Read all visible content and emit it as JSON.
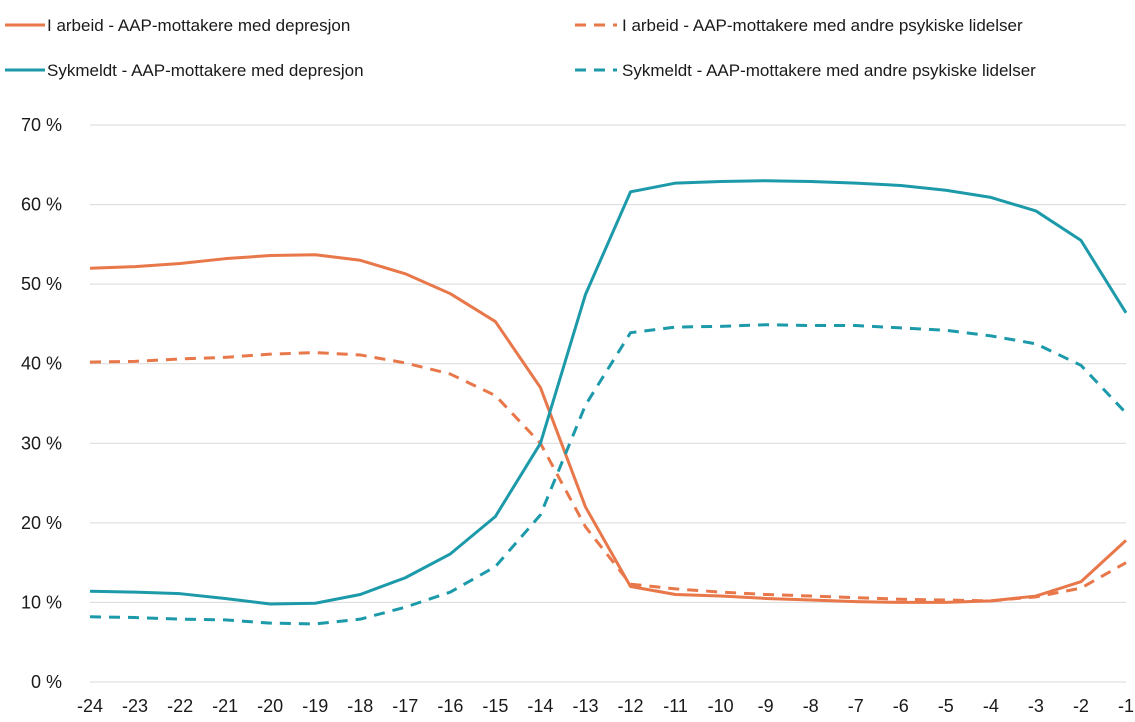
{
  "chart_data": {
    "type": "line",
    "x": [
      -24,
      -23,
      -22,
      -21,
      -20,
      -19,
      -18,
      -17,
      -16,
      -15,
      -14,
      -13,
      -12,
      -11,
      -10,
      -9,
      -8,
      -7,
      -6,
      -5,
      -4,
      -3,
      -2,
      -1
    ],
    "x_tick_labels": [
      "-24",
      "-23",
      "-22",
      "-21",
      "-20",
      "-19",
      "-18",
      "-17",
      "-16",
      "-15",
      "-14",
      "-13",
      "-12",
      "-11",
      "-10",
      "-9",
      "-8",
      "-7",
      "-6",
      "-5",
      "-4",
      "-3",
      "-2",
      "-1"
    ],
    "ylim": [
      0,
      70
    ],
    "y_ticks": [
      0,
      10,
      20,
      30,
      40,
      50,
      60,
      70
    ],
    "y_tick_labels": [
      "0 %",
      "10 %",
      "20 %",
      "30 %",
      "40 %",
      "50 %",
      "60 %",
      "70 %"
    ],
    "grid": true,
    "legend_position": "top",
    "series": [
      {
        "name": "I arbeid  - AAP-mottakere med depresjon",
        "color": "#E8774A",
        "dash": "solid",
        "values": [
          52.0,
          52.2,
          52.6,
          53.2,
          53.6,
          53.7,
          53.0,
          51.3,
          48.8,
          45.3,
          37.0,
          22.0,
          12.0,
          11.0,
          10.8,
          10.5,
          10.3,
          10.1,
          10.0,
          10.0,
          10.2,
          10.8,
          12.6,
          17.8
        ]
      },
      {
        "name": "I arbeid  - AAP-mottakere med andre psykiske lidelser",
        "color": "#E8774A",
        "dash": "dashed",
        "values": [
          40.2,
          40.3,
          40.6,
          40.8,
          41.2,
          41.4,
          41.1,
          40.1,
          38.7,
          36.0,
          30.0,
          19.5,
          12.3,
          11.7,
          11.3,
          11.0,
          10.8,
          10.6,
          10.4,
          10.3,
          10.2,
          10.7,
          11.8,
          15.0
        ]
      },
      {
        "name": "Sykmeldt - AAP-mottakere med depresjon",
        "color": "#1C9AAA",
        "dash": "solid",
        "values": [
          11.4,
          11.3,
          11.1,
          10.5,
          9.8,
          9.9,
          11.0,
          13.1,
          16.1,
          20.8,
          30.0,
          48.7,
          61.6,
          62.7,
          62.9,
          63.0,
          62.9,
          62.7,
          62.4,
          61.8,
          60.9,
          59.2,
          55.5,
          46.4
        ]
      },
      {
        "name": "Sykmeldt - AAP-mottakere med andre psykiske lidelser",
        "color": "#1C9AAA",
        "dash": "dashed",
        "values": [
          8.2,
          8.1,
          7.9,
          7.8,
          7.4,
          7.3,
          7.9,
          9.4,
          11.3,
          14.5,
          21.0,
          34.8,
          43.9,
          44.6,
          44.7,
          44.9,
          44.8,
          44.8,
          44.5,
          44.2,
          43.5,
          42.5,
          39.8,
          33.8
        ]
      }
    ]
  }
}
